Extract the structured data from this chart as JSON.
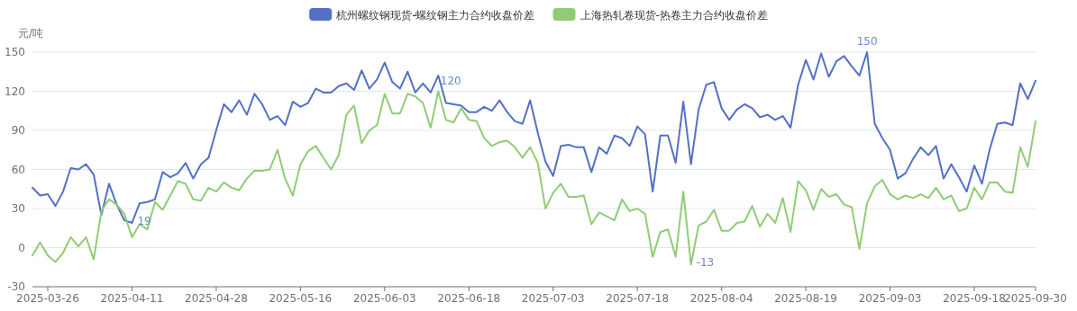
{
  "chart_data": {
    "type": "line",
    "ylabel": "元/吨",
    "legend": "top",
    "grid": "y",
    "marker": "none",
    "line_style": "solid",
    "ylim": [
      -30,
      150
    ],
    "yticks": [
      -30,
      0,
      30,
      60,
      90,
      120,
      150
    ],
    "categories": [
      null,
      null,
      "2025-03-26",
      null,
      null,
      null,
      null,
      null,
      null,
      null,
      null,
      null,
      null,
      "2025-04-11",
      null,
      null,
      null,
      null,
      null,
      null,
      null,
      null,
      null,
      null,
      "2025-04-28",
      null,
      null,
      null,
      null,
      null,
      null,
      null,
      null,
      null,
      null,
      "2025-05-16",
      null,
      null,
      null,
      null,
      null,
      null,
      null,
      null,
      null,
      null,
      "2025-06-03",
      null,
      null,
      null,
      null,
      null,
      null,
      null,
      null,
      null,
      null,
      "2025-06-18",
      null,
      null,
      null,
      null,
      null,
      null,
      null,
      null,
      null,
      null,
      "2025-07-03",
      null,
      null,
      null,
      null,
      null,
      null,
      null,
      null,
      null,
      null,
      "2025-07-18",
      null,
      null,
      null,
      null,
      null,
      null,
      null,
      null,
      null,
      null,
      "2025-08-04",
      null,
      null,
      null,
      null,
      null,
      null,
      null,
      null,
      null,
      null,
      "2025-08-19",
      null,
      null,
      null,
      null,
      null,
      null,
      null,
      null,
      null,
      null,
      "2025-09-03",
      null,
      null,
      null,
      null,
      null,
      null,
      null,
      null,
      null,
      null,
      "2025-09-18",
      null,
      null,
      null,
      null,
      null,
      null,
      null,
      "2025-09-30"
    ],
    "series": [
      {
        "name": "杭州螺纹钢现货-螺纹钢主力合约收盘价差",
        "color": "#5470c6",
        "values": [
          46,
          40,
          41,
          32,
          43,
          61,
          60,
          64,
          56,
          25,
          49,
          33,
          21,
          19,
          34,
          35,
          37,
          58,
          54,
          57,
          65,
          53,
          64,
          69,
          90,
          110,
          104,
          113,
          102,
          118,
          110,
          98,
          101,
          94,
          112,
          108,
          111,
          122,
          119,
          119,
          124,
          126,
          121,
          136,
          122,
          129,
          142,
          127,
          122,
          135,
          119,
          126,
          119,
          132,
          111,
          110,
          109,
          104,
          104,
          108,
          105,
          113,
          104,
          97,
          95,
          113,
          88,
          66,
          55,
          78,
          79,
          77,
          77,
          58,
          77,
          72,
          86,
          84,
          78,
          93,
          87,
          43,
          86,
          86,
          65,
          112,
          64,
          106,
          125,
          127,
          107,
          98,
          106,
          110,
          107,
          100,
          102,
          98,
          101,
          92,
          125,
          144,
          129,
          149,
          131,
          143,
          147,
          139,
          132,
          150,
          95,
          84,
          75,
          53,
          57,
          68,
          77,
          71,
          78,
          53,
          64,
          54,
          43,
          63,
          49,
          75,
          95,
          96,
          94,
          126,
          114,
          128
        ]
      },
      {
        "name": "上海热轧卷现货-热卷主力合约收盘价差",
        "color": "#91cc75",
        "values": [
          -6,
          4,
          -6,
          -11,
          -4,
          8,
          1,
          8,
          -9,
          28,
          37,
          33,
          26,
          8,
          18,
          14,
          35,
          29,
          40,
          51,
          49,
          37,
          36,
          46,
          43,
          50,
          46,
          44,
          53,
          59,
          59,
          60,
          75,
          53,
          40,
          64,
          74,
          78,
          69,
          60,
          71,
          102,
          109,
          80,
          90,
          94,
          118,
          103,
          103,
          118,
          116,
          111,
          92,
          120,
          98,
          96,
          107,
          98,
          97,
          84,
          78,
          81,
          82,
          77,
          69,
          77,
          65,
          30,
          42,
          49,
          39,
          39,
          40,
          18,
          27,
          24,
          21,
          37,
          28,
          30,
          26,
          -7,
          12,
          14,
          -7,
          43,
          -13,
          17,
          20,
          29,
          13,
          13,
          19,
          20,
          32,
          16,
          26,
          19,
          38,
          12,
          51,
          44,
          29,
          45,
          39,
          41,
          33,
          31,
          -1,
          34,
          47,
          52,
          41,
          37,
          40,
          38,
          41,
          38,
          46,
          37,
          40,
          28,
          30,
          46,
          37,
          50,
          50,
          43,
          42,
          77,
          62,
          97
        ]
      }
    ],
    "annotations": [
      "150",
      "19",
      "120",
      "-13"
    ]
  }
}
